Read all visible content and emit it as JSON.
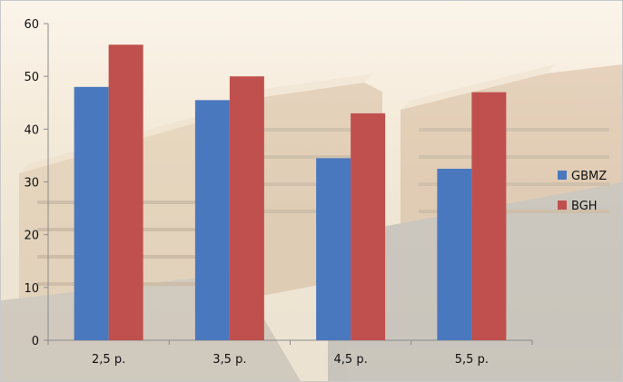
{
  "chart_data": {
    "type": "bar",
    "categories": [
      "2,5 p.",
      "3,5 p.",
      "4,5 p.",
      "5,5 p."
    ],
    "series": [
      {
        "name": "GBMZ",
        "color": "#4a78be",
        "values": [
          48,
          45.5,
          34.5,
          32.5
        ]
      },
      {
        "name": "BGH",
        "color": "#c0504d",
        "values": [
          56,
          50,
          43,
          47
        ]
      }
    ],
    "ylim": [
      0,
      60
    ],
    "yticks": [
      0,
      10,
      20,
      30,
      40,
      50,
      60
    ],
    "grid": false,
    "legend_position": "right",
    "title": "",
    "xlabel": "",
    "ylabel": ""
  }
}
